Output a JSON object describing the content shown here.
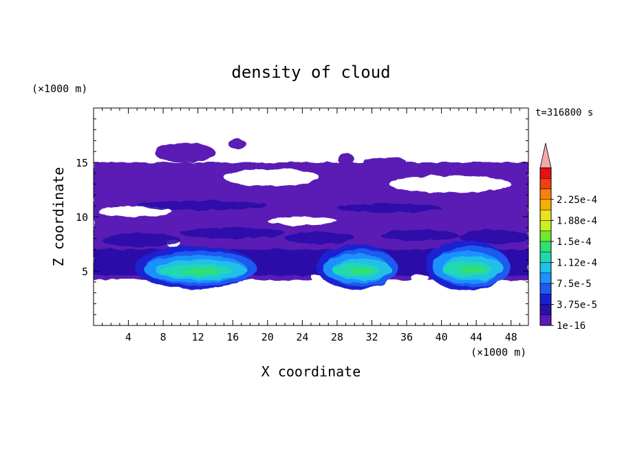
{
  "chart_data": {
    "type": "heatmap",
    "title": "density of cloud",
    "xlabel": "X coordinate",
    "ylabel": "Z coordinate",
    "x_unit": "(×1000 m)",
    "y_unit": "(×1000 m)",
    "time_label": "t=316800 s",
    "xlim": [
      0,
      50
    ],
    "ylim": [
      0,
      20
    ],
    "x_ticks": [
      4,
      8,
      12,
      16,
      20,
      24,
      28,
      32,
      36,
      40,
      44,
      48
    ],
    "y_ticks": [
      5,
      10,
      15
    ],
    "colorbar": {
      "labels": [
        "1e-16",
        "3.75e-5",
        "7.5e-5",
        "1.12e-4",
        "1.5e-4",
        "1.88e-4",
        "2.25e-4"
      ],
      "colors": [
        "#5a1ab5",
        "#2a10a8",
        "#1a20d0",
        "#1e5af0",
        "#1e90ff",
        "#20c0e8",
        "#20d8b0",
        "#30e070",
        "#70e830",
        "#c8f020",
        "#f0e020",
        "#f8b000",
        "#f88010",
        "#f04010",
        "#e81010"
      ],
      "overflow_color": "#f4a8a8"
    },
    "regions": {
      "cloud_band": {
        "x_range": [
          0,
          50
        ],
        "z_range": [
          4.2,
          15
        ]
      },
      "upper_patches": [
        {
          "x_range": [
            7,
            14
          ],
          "z_range": [
            15,
            16.8
          ]
        },
        {
          "x_range": [
            15.5,
            17.5
          ],
          "z_range": [
            16.2,
            17.2
          ]
        },
        {
          "x_range": [
            28,
            30
          ],
          "z_range": [
            14.8,
            15.8
          ]
        },
        {
          "x_range": [
            31,
            36
          ],
          "z_range": [
            14.5,
            15.5
          ]
        }
      ],
      "dense_cores": [
        {
          "x_range": [
            5,
            19
          ],
          "z_peak": 6.1,
          "max_level": "1.12e-4"
        },
        {
          "x_range": [
            26,
            35
          ],
          "z_peak": 6.2,
          "max_level": "1.12e-4"
        },
        {
          "x_range": [
            38.5,
            48
          ],
          "z_peak": 6.4,
          "max_level": "1.12e-4"
        }
      ]
    }
  }
}
